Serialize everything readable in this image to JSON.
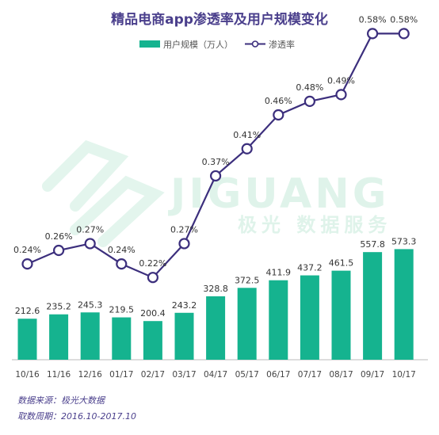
{
  "chart_data": {
    "type": "bar+line",
    "title": "精品电商app渗透率及用户规模变化",
    "categories": [
      "10/16",
      "11/16",
      "12/16",
      "01/17",
      "02/17",
      "03/17",
      "04/17",
      "05/17",
      "06/17",
      "07/17",
      "08/17",
      "09/17",
      "10/17"
    ],
    "series": [
      {
        "name": "用户规模（万人）",
        "type": "bar",
        "values": [
          212.6,
          235.2,
          245.3,
          219.5,
          200.4,
          243.2,
          328.8,
          372.5,
          411.9,
          437.2,
          461.5,
          557.8,
          573.3
        ],
        "labels": [
          "212.6",
          "235.2",
          "245.3",
          "219.5",
          "200.4",
          "243.2",
          "328.8",
          "372.5",
          "411.9",
          "437.2",
          "461.5",
          "557.8",
          "573.3"
        ]
      },
      {
        "name": "渗透率",
        "type": "line",
        "values": [
          0.24,
          0.26,
          0.27,
          0.24,
          0.22,
          0.27,
          0.37,
          0.41,
          0.46,
          0.48,
          0.49,
          0.58,
          0.58
        ],
        "labels": [
          "0.24%",
          "0.26%",
          "0.27%",
          "0.24%",
          "0.22%",
          "0.27%",
          "0.37%",
          "0.41%",
          "0.46%",
          "0.48%",
          "0.49%",
          "0.58%",
          "0.58%"
        ]
      }
    ],
    "colors": {
      "bar": "#15b38f",
      "line": "#3c2f7d",
      "marker_fill": "#ffffff",
      "title": "#4a3f8c",
      "axis": "#bbbbbb"
    },
    "legend_position": "top-center",
    "grid": false,
    "watermark": [
      "JIGUANG",
      "极光 数据服务"
    ]
  },
  "footer": {
    "source": "数据来源：极光大数据",
    "period": "取数周期：2016.10-2017.10"
  }
}
